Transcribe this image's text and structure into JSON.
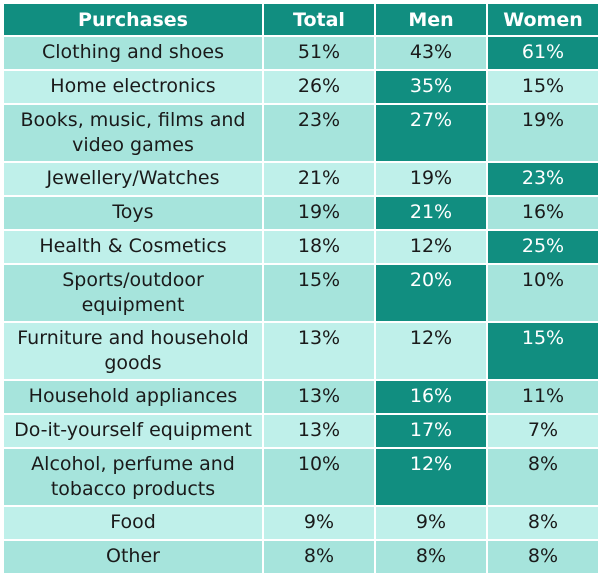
{
  "table": {
    "headers": [
      "Purchases",
      "Total",
      "Men",
      "Women"
    ],
    "rows": [
      {
        "label": "Clothing and shoes",
        "total": "51%",
        "men": "43%",
        "women": "61%"
      },
      {
        "label": "Home electronics",
        "total": "26%",
        "men": "35%",
        "women": "15%"
      },
      {
        "label": "Books, music, films and video games",
        "total": "23%",
        "men": "27%",
        "women": "19%"
      },
      {
        "label": "Jewellery/Watches",
        "total": "21%",
        "men": "19%",
        "women": "23%"
      },
      {
        "label": "Toys",
        "total": "19%",
        "men": "21%",
        "women": "16%"
      },
      {
        "label": "Health & Cosmetics",
        "total": "18%",
        "men": "12%",
        "women": "25%"
      },
      {
        "label": "Sports/outdoor equipment",
        "total": "15%",
        "men": "20%",
        "women": "10%"
      },
      {
        "label": "Furniture and household goods",
        "total": "13%",
        "men": "12%",
        "women": "15%"
      },
      {
        "label": "Household appliances",
        "total": "13%",
        "men": "16%",
        "women": "11%"
      },
      {
        "label": "Do-it-yourself equipment",
        "total": "13%",
        "men": "17%",
        "women": "7%"
      },
      {
        "label": "Alcohol, perfume and tobacco products",
        "total": "10%",
        "men": "12%",
        "women": "8%"
      },
      {
        "label": "Food",
        "total": "9%",
        "men": "9%",
        "women": "8%"
      },
      {
        "label": "Other",
        "total": "8%",
        "men": "8%",
        "women": "8%"
      }
    ],
    "highlight_color": "#118e80",
    "row_colors": [
      "#a6e4dc",
      "#bff0ea"
    ]
  }
}
